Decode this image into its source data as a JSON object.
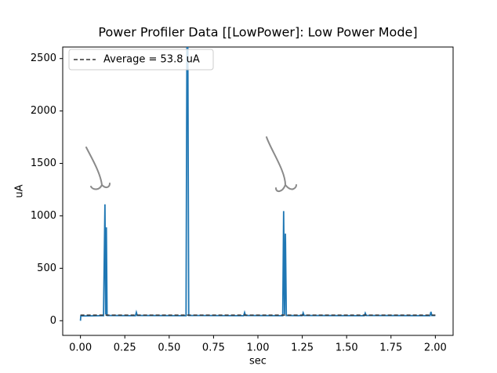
{
  "chart_data": {
    "type": "line",
    "title": "Power Profiler Data [[LowPower]: Low Power Mode]",
    "xlabel": "sec",
    "ylabel": "uA",
    "xlim": [
      -0.1,
      2.1
    ],
    "ylim": [
      -140,
      2610
    ],
    "xticks": [
      {
        "value": 0,
        "label": "0.00"
      },
      {
        "value": 0.25,
        "label": "0.25"
      },
      {
        "value": 0.5,
        "label": "0.50"
      },
      {
        "value": 0.75,
        "label": "0.75"
      },
      {
        "value": 1,
        "label": "1.00"
      },
      {
        "value": 1.25,
        "label": "1.25"
      },
      {
        "value": 1.5,
        "label": "1.50"
      },
      {
        "value": 1.75,
        "label": "1.75"
      },
      {
        "value": 2,
        "label": "2.00"
      }
    ],
    "yticks": [
      0,
      500,
      1000,
      1500,
      2000,
      2500
    ],
    "legend": "upper left",
    "series": [
      {
        "color": "#1f77b4",
        "dash": false,
        "x": [
          0.0,
          0.002,
          0.13,
          0.138,
          0.142,
          0.146,
          0.15,
          0.31,
          0.315,
          0.32,
          0.595,
          0.6,
          0.605,
          0.61,
          0.92,
          0.925,
          0.93,
          1.14,
          1.145,
          1.15,
          1.155,
          1.16,
          1.25,
          1.255,
          1.26,
          1.6,
          1.605,
          1.61,
          1.97,
          1.975,
          1.98,
          2.0
        ],
        "values": [
          0,
          45,
          48,
          1110,
          60,
          890,
          50,
          48,
          80,
          50,
          48,
          2650,
          2650,
          50,
          48,
          78,
          50,
          48,
          1045,
          60,
          830,
          50,
          48,
          75,
          50,
          48,
          72,
          50,
          48,
          85,
          50,
          50
        ]
      },
      {
        "name": "Average = 53.8 uA",
        "color": "#333333",
        "dash": true,
        "x": [
          0,
          2
        ],
        "values": [
          53.8,
          53.8
        ]
      }
    ]
  }
}
